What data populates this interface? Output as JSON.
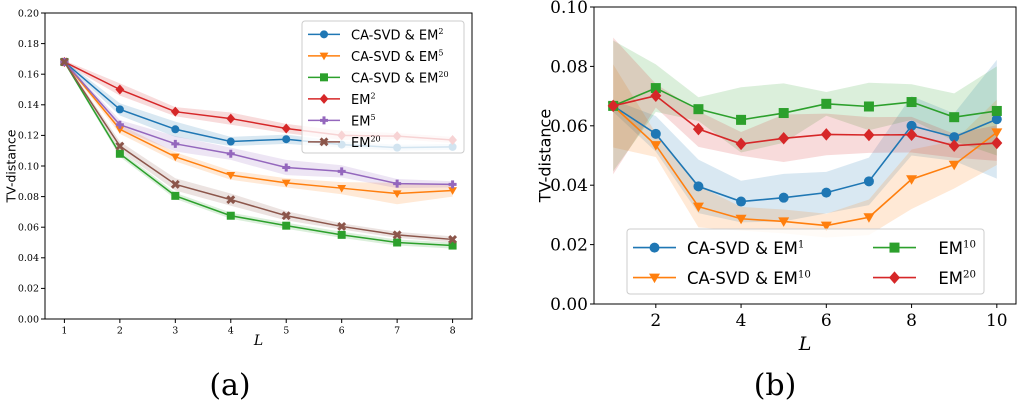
{
  "chart_data": [
    {
      "type": "line",
      "panel_label": "(a)",
      "xlabel": "L",
      "ylabel": "TV-distance",
      "xlim": [
        0.65,
        8.35
      ],
      "ylim": [
        0,
        0.2
      ],
      "xticks": [
        1,
        2,
        3,
        4,
        5,
        6,
        7,
        8
      ],
      "yticks": [
        0,
        0.02,
        0.04,
        0.06,
        0.08,
        0.1,
        0.12,
        0.14,
        0.16,
        0.18,
        0.2
      ],
      "ytick_decimals": 2,
      "grid": false,
      "legend": {
        "placement": "top-right",
        "columns": 1
      },
      "x": [
        1,
        2,
        3,
        4,
        5,
        6,
        7,
        8
      ],
      "series": [
        {
          "name": "CA-SVD & EM",
          "sup": "2",
          "color": "#1f77b4",
          "marker": "circle",
          "values": [
            0.168,
            0.137,
            0.124,
            0.116,
            0.1175,
            0.114,
            0.112,
            0.1125
          ],
          "band": [
            0.001,
            0.004,
            0.005,
            0.003,
            0.003,
            0.002,
            0.002,
            0.002
          ]
        },
        {
          "name": "CA-SVD & EM",
          "sup": "5",
          "color": "#ff7f0e",
          "marker": "triangle-down",
          "values": [
            0.168,
            0.124,
            0.106,
            0.094,
            0.089,
            0.0855,
            0.082,
            0.084
          ],
          "band": [
            0.001,
            0.003,
            0.003,
            0.003,
            0.003,
            0.004,
            0.007,
            0.004
          ]
        },
        {
          "name": "CA-SVD & EM",
          "sup": "20",
          "color": "#2ca02c",
          "marker": "square",
          "values": [
            0.168,
            0.108,
            0.0805,
            0.0675,
            0.061,
            0.055,
            0.05,
            0.048
          ],
          "band": [
            0.001,
            0.002,
            0.002,
            0.002,
            0.002,
            0.002,
            0.002,
            0.002
          ]
        },
        {
          "name": "EM",
          "sup": "2",
          "color": "#d62728",
          "marker": "diamond",
          "values": [
            0.168,
            0.15,
            0.1355,
            0.131,
            0.1245,
            0.12,
            0.1195,
            0.117
          ],
          "band": [
            0.001,
            0.004,
            0.003,
            0.004,
            0.003,
            0.003,
            0.002,
            0.002
          ]
        },
        {
          "name": "EM",
          "sup": "5",
          "color": "#9467bd",
          "marker": "plus",
          "values": [
            0.168,
            0.127,
            0.1145,
            0.108,
            0.099,
            0.0965,
            0.0885,
            0.088
          ],
          "band": [
            0.001,
            0.003,
            0.005,
            0.004,
            0.005,
            0.004,
            0.003,
            0.002
          ]
        },
        {
          "name": "EM",
          "sup": "20",
          "color": "#8c564b",
          "marker": "x",
          "values": [
            0.168,
            0.113,
            0.088,
            0.078,
            0.0675,
            0.0605,
            0.055,
            0.052
          ],
          "band": [
            0.001,
            0.003,
            0.004,
            0.004,
            0.003,
            0.002,
            0.002,
            0.002
          ]
        }
      ]
    },
    {
      "type": "line",
      "panel_label": "(b)",
      "xlabel": "L",
      "ylabel": "TV-distance",
      "xlim": [
        0.55,
        10.45
      ],
      "ylim": [
        0,
        0.1
      ],
      "xticks": [
        2,
        4,
        6,
        8,
        10
      ],
      "yticks": [
        0,
        0.02,
        0.04,
        0.06,
        0.08,
        0.1
      ],
      "ytick_decimals": 2,
      "grid": false,
      "legend": {
        "placement": "lower-center",
        "columns": 2
      },
      "x": [
        1,
        2,
        3,
        4,
        5,
        6,
        7,
        8,
        9,
        10
      ],
      "series": [
        {
          "name": "CA-SVD & EM",
          "sup": "1",
          "color": "#1f77b4",
          "marker": "circle",
          "values": [
            0.0667,
            0.0573,
            0.0396,
            0.0345,
            0.0358,
            0.0375,
            0.0413,
            0.06,
            0.0562,
            0.0622
          ],
          "band": [
            0.002,
            0.006,
            0.009,
            0.007,
            0.008,
            0.007,
            0.008,
            0.01,
            0.008,
            0.02
          ]
        },
        {
          "name": "CA-SVD & EM",
          "sup": "10",
          "color": "#ff7f0e",
          "marker": "triangle-down",
          "values": [
            0.0667,
            0.0535,
            0.0328,
            0.0287,
            0.0278,
            0.0264,
            0.0292,
            0.042,
            0.0469,
            0.0578
          ],
          "band": [
            0.014,
            0.004,
            0.007,
            0.004,
            0.004,
            0.004,
            0.006,
            0.01,
            0.008,
            0.011
          ]
        },
        {
          "name": "EM",
          "sup": "10",
          "color": "#2ca02c",
          "marker": "square",
          "values": [
            0.0667,
            0.0727,
            0.0656,
            0.062,
            0.0643,
            0.0674,
            0.0665,
            0.068,
            0.0629,
            0.065
          ],
          "band": [
            0.022,
            0.008,
            0.004,
            0.011,
            0.01,
            0.004,
            0.008,
            0.006,
            0.008,
            0.015
          ]
        },
        {
          "name": "EM",
          "sup": "20",
          "color": "#d62728",
          "marker": "diamond",
          "values": [
            0.0667,
            0.0701,
            0.0589,
            0.0539,
            0.0558,
            0.0571,
            0.0569,
            0.057,
            0.0533,
            0.0542
          ],
          "band": [
            0.023,
            0.004,
            0.006,
            0.004,
            0.008,
            0.007,
            0.006,
            0.006,
            0.004,
            0.006
          ]
        }
      ]
    }
  ]
}
